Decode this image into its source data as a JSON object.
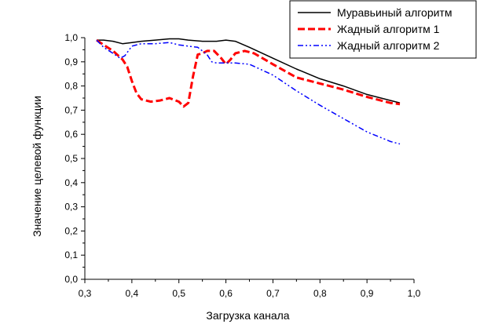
{
  "chart_data": {
    "type": "line",
    "title": "",
    "xlabel": "Загрузка канала",
    "ylabel": "Значение целевой функции",
    "xlim": [
      0.3,
      1.0
    ],
    "ylim": [
      0.0,
      1.0
    ],
    "xticks": [
      0.3,
      0.4,
      0.5,
      0.6,
      0.7,
      0.8,
      0.9,
      1.0
    ],
    "xtick_labels": [
      "0,3",
      "0,4",
      "0,5",
      "0,6",
      "0,7",
      "0,8",
      "0,9",
      "1,0"
    ],
    "yticks": [
      0.0,
      0.1,
      0.2,
      0.3,
      0.4,
      0.5,
      0.6,
      0.7,
      0.8,
      0.9,
      1.0
    ],
    "ytick_labels": [
      "0,0",
      "0,1",
      "0,2",
      "0,3",
      "0,4",
      "0,5",
      "0,6",
      "0,7",
      "0,8",
      "0,9",
      "1,0"
    ],
    "grid": false,
    "legend_position": "top-right",
    "series": [
      {
        "name": "Муравьиный алгоритм",
        "color": "#000000",
        "style": "solid",
        "x": [
          0.325,
          0.34,
          0.36,
          0.38,
          0.4,
          0.42,
          0.45,
          0.48,
          0.5,
          0.52,
          0.55,
          0.58,
          0.6,
          0.62,
          0.65,
          0.7,
          0.75,
          0.8,
          0.85,
          0.9,
          0.95,
          0.97
        ],
        "y": [
          0.99,
          0.99,
          0.985,
          0.975,
          0.98,
          0.985,
          0.99,
          0.995,
          0.995,
          0.99,
          0.985,
          0.985,
          0.99,
          0.985,
          0.96,
          0.915,
          0.87,
          0.83,
          0.8,
          0.765,
          0.74,
          0.73
        ]
      },
      {
        "name": "Жадный алгоритм 1",
        "color": "#ff0000",
        "style": "dash",
        "x": [
          0.325,
          0.34,
          0.36,
          0.38,
          0.39,
          0.4,
          0.41,
          0.42,
          0.44,
          0.46,
          0.48,
          0.5,
          0.51,
          0.52,
          0.53,
          0.54,
          0.55,
          0.56,
          0.575,
          0.59,
          0.6,
          0.61,
          0.62,
          0.64,
          0.66,
          0.7,
          0.75,
          0.8,
          0.85,
          0.9,
          0.95,
          0.97
        ],
        "y": [
          0.99,
          0.97,
          0.945,
          0.91,
          0.88,
          0.82,
          0.77,
          0.745,
          0.735,
          0.74,
          0.75,
          0.735,
          0.715,
          0.73,
          0.84,
          0.93,
          0.935,
          0.945,
          0.945,
          0.915,
          0.89,
          0.91,
          0.935,
          0.945,
          0.935,
          0.89,
          0.835,
          0.81,
          0.785,
          0.755,
          0.73,
          0.725
        ]
      },
      {
        "name": "Жадный алгоритм 2",
        "color": "#0000ff",
        "style": "dashdotdot",
        "x": [
          0.325,
          0.34,
          0.36,
          0.375,
          0.385,
          0.4,
          0.42,
          0.45,
          0.48,
          0.5,
          0.52,
          0.54,
          0.56,
          0.57,
          0.58,
          0.6,
          0.62,
          0.65,
          0.7,
          0.75,
          0.8,
          0.85,
          0.9,
          0.95,
          0.97
        ],
        "y": [
          0.99,
          0.96,
          0.935,
          0.915,
          0.925,
          0.965,
          0.975,
          0.975,
          0.98,
          0.97,
          0.965,
          0.96,
          0.93,
          0.9,
          0.895,
          0.895,
          0.895,
          0.89,
          0.845,
          0.78,
          0.72,
          0.665,
          0.61,
          0.57,
          0.56
        ]
      }
    ]
  }
}
